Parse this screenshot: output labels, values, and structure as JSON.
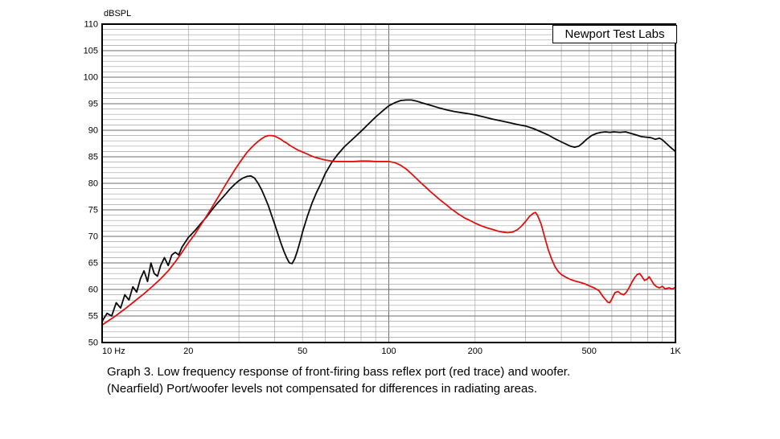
{
  "branding": {
    "lab_label": "Newport Test Labs"
  },
  "caption": {
    "line1": "Graph 3. Low frequency response of front-firing bass reflex port (red trace) and woofer.",
    "line2": "(Nearfield) Port/woofer levels not compensated for differences in radiating areas."
  },
  "chart_data": {
    "type": "line",
    "title": "",
    "xlabel": "",
    "ylabel": "dBSPL",
    "xscale": "log",
    "xlim": [
      10,
      1000
    ],
    "ylim": [
      50,
      110
    ],
    "grid": true,
    "legend": "none",
    "x_tick_labels": [
      {
        "value": 10,
        "label": "10 Hz"
      },
      {
        "value": 20,
        "label": "20"
      },
      {
        "value": 50,
        "label": "50"
      },
      {
        "value": 100,
        "label": "100"
      },
      {
        "value": 200,
        "label": "200"
      },
      {
        "value": 500,
        "label": "500"
      },
      {
        "value": 1000,
        "label": "1K"
      }
    ],
    "y_ticks": [
      50,
      55,
      60,
      65,
      70,
      75,
      80,
      85,
      90,
      95,
      100,
      105,
      110
    ],
    "series": [
      {
        "name": "woofer",
        "trace_color": "#0a0a0a",
        "points": [
          [
            10,
            54
          ],
          [
            10.4,
            55.5
          ],
          [
            10.8,
            55
          ],
          [
            11.2,
            57.5
          ],
          [
            11.6,
            56.5
          ],
          [
            12,
            59
          ],
          [
            12.4,
            58
          ],
          [
            12.8,
            60.5
          ],
          [
            13.2,
            59.5
          ],
          [
            13.6,
            62
          ],
          [
            14,
            63.5
          ],
          [
            14.4,
            61.5
          ],
          [
            14.8,
            65
          ],
          [
            15.2,
            63
          ],
          [
            15.6,
            62.5
          ],
          [
            16,
            64.5
          ],
          [
            16.5,
            66
          ],
          [
            17,
            64.5
          ],
          [
            17.5,
            66.5
          ],
          [
            18,
            67
          ],
          [
            18.5,
            66.5
          ],
          [
            19,
            68
          ],
          [
            20,
            69.8
          ],
          [
            21,
            71
          ],
          [
            22,
            72.3
          ],
          [
            23,
            73.5
          ],
          [
            24,
            74.8
          ],
          [
            25,
            76
          ],
          [
            26,
            77
          ],
          [
            27,
            78
          ],
          [
            28,
            79
          ],
          [
            29,
            79.8
          ],
          [
            30,
            80.5
          ],
          [
            31,
            81
          ],
          [
            32,
            81.3
          ],
          [
            33,
            81.4
          ],
          [
            34,
            81
          ],
          [
            35,
            80
          ],
          [
            36,
            78.8
          ],
          [
            37,
            77.3
          ],
          [
            38,
            75.8
          ],
          [
            39,
            74
          ],
          [
            40,
            72.3
          ],
          [
            41,
            70.5
          ],
          [
            42,
            68.8
          ],
          [
            43,
            67.3
          ],
          [
            44,
            66
          ],
          [
            45,
            65
          ],
          [
            46,
            64.9
          ],
          [
            47,
            65.8
          ],
          [
            48,
            67.3
          ],
          [
            49,
            69
          ],
          [
            50,
            70.8
          ],
          [
            52,
            73.8
          ],
          [
            54,
            76.3
          ],
          [
            56,
            78.3
          ],
          [
            58,
            80
          ],
          [
            60,
            81.8
          ],
          [
            63,
            83.8
          ],
          [
            66,
            85.3
          ],
          [
            70,
            86.9
          ],
          [
            75,
            88.4
          ],
          [
            80,
            89.8
          ],
          [
            85,
            91.2
          ],
          [
            90,
            92.5
          ],
          [
            95,
            93.6
          ],
          [
            100,
            94.6
          ],
          [
            105,
            95.2
          ],
          [
            110,
            95.6
          ],
          [
            115,
            95.7
          ],
          [
            120,
            95.7
          ],
          [
            125,
            95.5
          ],
          [
            130,
            95.2
          ],
          [
            140,
            94.7
          ],
          [
            150,
            94.2
          ],
          [
            160,
            93.8
          ],
          [
            170,
            93.5
          ],
          [
            180,
            93.3
          ],
          [
            190,
            93.1
          ],
          [
            200,
            92.9
          ],
          [
            215,
            92.5
          ],
          [
            230,
            92.1
          ],
          [
            245,
            91.8
          ],
          [
            260,
            91.5
          ],
          [
            280,
            91.1
          ],
          [
            300,
            90.8
          ],
          [
            320,
            90.3
          ],
          [
            340,
            89.7
          ],
          [
            360,
            89.1
          ],
          [
            380,
            88.4
          ],
          [
            400,
            87.8
          ],
          [
            415,
            87.4
          ],
          [
            430,
            87
          ],
          [
            445,
            86.8
          ],
          [
            460,
            87
          ],
          [
            475,
            87.6
          ],
          [
            490,
            88.3
          ],
          [
            510,
            89
          ],
          [
            530,
            89.4
          ],
          [
            550,
            89.6
          ],
          [
            570,
            89.7
          ],
          [
            590,
            89.6
          ],
          [
            610,
            89.7
          ],
          [
            640,
            89.6
          ],
          [
            670,
            89.7
          ],
          [
            700,
            89.4
          ],
          [
            730,
            89.1
          ],
          [
            760,
            88.8
          ],
          [
            790,
            88.7
          ],
          [
            820,
            88.6
          ],
          [
            850,
            88.3
          ],
          [
            880,
            88.5
          ],
          [
            900,
            88.2
          ],
          [
            930,
            87.5
          ],
          [
            960,
            86.8
          ],
          [
            1000,
            86
          ]
        ]
      },
      {
        "name": "port",
        "trace_color": "#e01010",
        "points": [
          [
            10,
            53.3
          ],
          [
            11,
            54.8
          ],
          [
            12,
            56.3
          ],
          [
            13,
            57.8
          ],
          [
            14,
            59.2
          ],
          [
            15,
            60.6
          ],
          [
            16,
            62
          ],
          [
            17,
            63.5
          ],
          [
            18,
            65.2
          ],
          [
            19,
            67
          ],
          [
            20,
            68.8
          ],
          [
            21,
            70.3
          ],
          [
            22,
            72
          ],
          [
            23,
            73.6
          ],
          [
            24,
            75.2
          ],
          [
            25,
            76.8
          ],
          [
            26,
            78.3
          ],
          [
            27,
            79.8
          ],
          [
            28,
            81.2
          ],
          [
            29,
            82.5
          ],
          [
            30,
            83.7
          ],
          [
            31,
            84.8
          ],
          [
            32,
            85.8
          ],
          [
            33,
            86.6
          ],
          [
            34,
            87.3
          ],
          [
            35,
            87.9
          ],
          [
            36,
            88.4
          ],
          [
            37,
            88.8
          ],
          [
            38,
            89
          ],
          [
            39,
            89
          ],
          [
            40,
            88.9
          ],
          [
            41,
            88.6
          ],
          [
            42,
            88.3
          ],
          [
            43,
            87.9
          ],
          [
            44,
            87.6
          ],
          [
            45,
            87.2
          ],
          [
            46,
            86.9
          ],
          [
            47,
            86.6
          ],
          [
            48,
            86.3
          ],
          [
            49,
            86.1
          ],
          [
            50,
            85.9
          ],
          [
            52,
            85.5
          ],
          [
            54,
            85.1
          ],
          [
            56,
            84.8
          ],
          [
            58,
            84.6
          ],
          [
            60,
            84.4
          ],
          [
            63,
            84.2
          ],
          [
            66,
            84.1
          ],
          [
            70,
            84.1
          ],
          [
            75,
            84.1
          ],
          [
            80,
            84.2
          ],
          [
            85,
            84.2
          ],
          [
            90,
            84.1
          ],
          [
            95,
            84.1
          ],
          [
            100,
            84.1
          ],
          [
            105,
            83.9
          ],
          [
            110,
            83.4
          ],
          [
            115,
            82.7
          ],
          [
            120,
            81.8
          ],
          [
            125,
            80.9
          ],
          [
            130,
            80
          ],
          [
            135,
            79.2
          ],
          [
            140,
            78.4
          ],
          [
            145,
            77.7
          ],
          [
            150,
            77
          ],
          [
            155,
            76.4
          ],
          [
            160,
            75.8
          ],
          [
            165,
            75.2
          ],
          [
            170,
            74.7
          ],
          [
            175,
            74.2
          ],
          [
            180,
            73.8
          ],
          [
            185,
            73.4
          ],
          [
            190,
            73.1
          ],
          [
            195,
            72.8
          ],
          [
            200,
            72.5
          ],
          [
            210,
            72
          ],
          [
            220,
            71.6
          ],
          [
            230,
            71.3
          ],
          [
            240,
            71
          ],
          [
            250,
            70.8
          ],
          [
            260,
            70.7
          ],
          [
            270,
            70.8
          ],
          [
            280,
            71.2
          ],
          [
            290,
            71.9
          ],
          [
            300,
            72.8
          ],
          [
            310,
            73.8
          ],
          [
            320,
            74.4
          ],
          [
            325,
            74.5
          ],
          [
            330,
            74
          ],
          [
            340,
            72.3
          ],
          [
            350,
            69.8
          ],
          [
            360,
            67.5
          ],
          [
            370,
            65.7
          ],
          [
            380,
            64.3
          ],
          [
            390,
            63.4
          ],
          [
            400,
            62.8
          ],
          [
            415,
            62.3
          ],
          [
            430,
            61.9
          ],
          [
            445,
            61.6
          ],
          [
            460,
            61.4
          ],
          [
            480,
            61.1
          ],
          [
            500,
            60.7
          ],
          [
            520,
            60.3
          ],
          [
            540,
            59.8
          ],
          [
            560,
            58.6
          ],
          [
            580,
            57.6
          ],
          [
            590,
            57.5
          ],
          [
            600,
            58.2
          ],
          [
            615,
            59.4
          ],
          [
            630,
            59.6
          ],
          [
            645,
            59.2
          ],
          [
            660,
            59
          ],
          [
            675,
            59.5
          ],
          [
            690,
            60.4
          ],
          [
            705,
            61.4
          ],
          [
            720,
            62.2
          ],
          [
            735,
            62.8
          ],
          [
            750,
            63
          ],
          [
            765,
            62.4
          ],
          [
            780,
            61.7
          ],
          [
            795,
            61.9
          ],
          [
            810,
            62.4
          ],
          [
            825,
            61.7
          ],
          [
            840,
            61
          ],
          [
            860,
            60.5
          ],
          [
            880,
            60.3
          ],
          [
            900,
            60.6
          ],
          [
            920,
            60.1
          ],
          [
            950,
            60.3
          ],
          [
            975,
            60.1
          ],
          [
            1000,
            60.4
          ]
        ]
      }
    ]
  }
}
